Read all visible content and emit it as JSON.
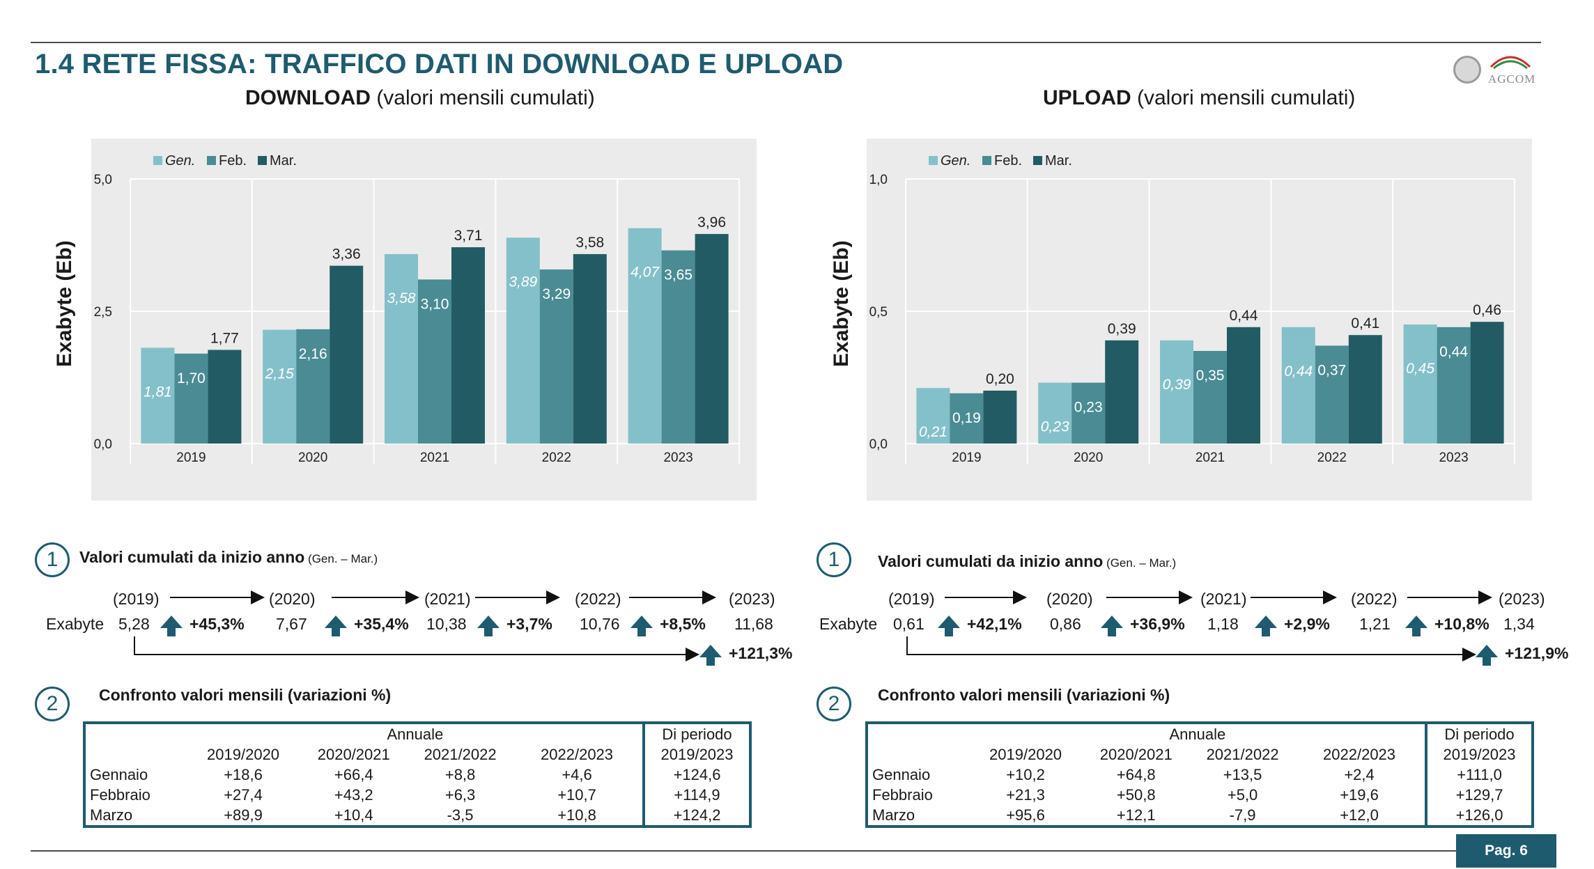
{
  "page": {
    "title": "1.4 RETE FISSA: TRAFFICO DATI IN DOWNLOAD E UPLOAD",
    "logo_text": "AGCOM",
    "page_number": "Pag. 6"
  },
  "colors": {
    "gen": "#84c0c9",
    "feb": "#4a8b94",
    "mar": "#235b64",
    "accent": "#1e5b6e"
  },
  "panels": {
    "download": {
      "title_bold": "DOWNLOAD",
      "title_rest": " (valori mensili cumulati)",
      "section1": {
        "number": "1",
        "heading": "Valori cumulati da inizio anno",
        "heading_small": " (Gen. – Mar.)",
        "row_label": "Exabyte",
        "years": [
          "(2019)",
          "(2020)",
          "(2021)",
          "(2022)",
          "(2023)"
        ],
        "values": [
          "5,28",
          "7,67",
          "10,38",
          "10,76",
          "11,68"
        ],
        "changes": [
          "+45,3%",
          "+35,4%",
          "+3,7%",
          "+8,5%"
        ],
        "total_change": "+121,3%"
      },
      "section2": {
        "number": "2",
        "heading": "Confronto valori mensili (variazioni %)",
        "group_annual": "Annuale",
        "group_period": "Di periodo",
        "columns": [
          "2019/2020",
          "2020/2021",
          "2021/2022",
          "2022/2023",
          "2019/2023"
        ],
        "rows": [
          {
            "label": "Gennaio",
            "values": [
              "+18,6",
              "+66,4",
              "+8,8",
              "+4,6",
              "+124,6"
            ]
          },
          {
            "label": "Febbraio",
            "values": [
              "+27,4",
              "+43,2",
              "+6,3",
              "+10,7",
              "+114,9"
            ]
          },
          {
            "label": "Marzo",
            "values": [
              "+89,9",
              "+10,4",
              "-3,5",
              "+10,8",
              "+124,2"
            ]
          }
        ]
      }
    },
    "upload": {
      "title_bold": "UPLOAD",
      "title_rest": " (valori mensili cumulati)",
      "section1": {
        "number": "1",
        "heading": "Valori cumulati da inizio anno",
        "heading_small": " (Gen. – Mar.)",
        "row_label": "Exabyte",
        "years": [
          "(2019)",
          "(2020)",
          "(2021)",
          "(2022)",
          "(2023)"
        ],
        "values": [
          "0,61",
          "0,86",
          "1,18",
          "1,21",
          "1,34"
        ],
        "changes": [
          "+42,1%",
          "+36,9%",
          "+2,9%",
          "+10,8%"
        ],
        "total_change": "+121,9%"
      },
      "section2": {
        "number": "2",
        "heading": "Confronto valori mensili (variazioni %)",
        "group_annual": "Annuale",
        "group_period": "Di periodo",
        "columns": [
          "2019/2020",
          "2020/2021",
          "2021/2022",
          "2022/2023",
          "2019/2023"
        ],
        "rows": [
          {
            "label": "Gennaio",
            "values": [
              "+10,2",
              "+64,8",
              "+13,5",
              "+2,4",
              "+111,0"
            ]
          },
          {
            "label": "Febbraio",
            "values": [
              "+21,3",
              "+50,8",
              "+5,0",
              "+19,6",
              "+129,7"
            ]
          },
          {
            "label": "Marzo",
            "values": [
              "+95,6",
              "+12,1",
              "-7,9",
              "+12,0",
              "+126,0"
            ]
          }
        ]
      }
    }
  },
  "chart_data": [
    {
      "type": "bar",
      "categories": [
        "2019",
        "2020",
        "2021",
        "2022",
        "2023"
      ],
      "series": [
        {
          "name": "Gen.",
          "values": [
            1.81,
            2.15,
            3.58,
            3.89,
            4.07
          ],
          "labels": [
            "1,81",
            "2,15",
            "3,58",
            "3,89",
            "4,07"
          ]
        },
        {
          "name": "Feb.",
          "values": [
            1.7,
            2.16,
            3.1,
            3.29,
            3.65
          ],
          "labels": [
            "1,70",
            "2,16",
            "3,10",
            "3,29",
            "3,65"
          ]
        },
        {
          "name": "Mar.",
          "values": [
            1.77,
            3.36,
            3.71,
            3.58,
            3.96
          ],
          "labels": [
            "1,77",
            "3,36",
            "3,71",
            "3,58",
            "3,96"
          ]
        }
      ],
      "ylabel": "Exabyte (Eb)",
      "ylim": [
        0,
        5
      ],
      "yticks": [
        "0,0",
        "2,5",
        "5,0"
      ],
      "legend": "top-left",
      "grid": true
    },
    {
      "type": "bar",
      "categories": [
        "2019",
        "2020",
        "2021",
        "2022",
        "2023"
      ],
      "series": [
        {
          "name": "Gen.",
          "values": [
            0.21,
            0.23,
            0.39,
            0.44,
            0.45
          ],
          "labels": [
            "0,21",
            "0,23",
            "0,39",
            "0,44",
            "0,45"
          ]
        },
        {
          "name": "Feb.",
          "values": [
            0.19,
            0.23,
            0.35,
            0.37,
            0.44
          ],
          "labels": [
            "0,19",
            "0,23",
            "0,35",
            "0,37",
            "0,44"
          ]
        },
        {
          "name": "Mar.",
          "values": [
            0.2,
            0.39,
            0.44,
            0.41,
            0.46
          ],
          "labels": [
            "0,20",
            "0,39",
            "0,44",
            "0,41",
            "0,46"
          ]
        }
      ],
      "ylabel": "Exabyte (Eb)",
      "ylim": [
        0,
        1
      ],
      "yticks": [
        "0,0",
        "0,5",
        "1,0"
      ],
      "legend": "top-left",
      "grid": true
    }
  ]
}
